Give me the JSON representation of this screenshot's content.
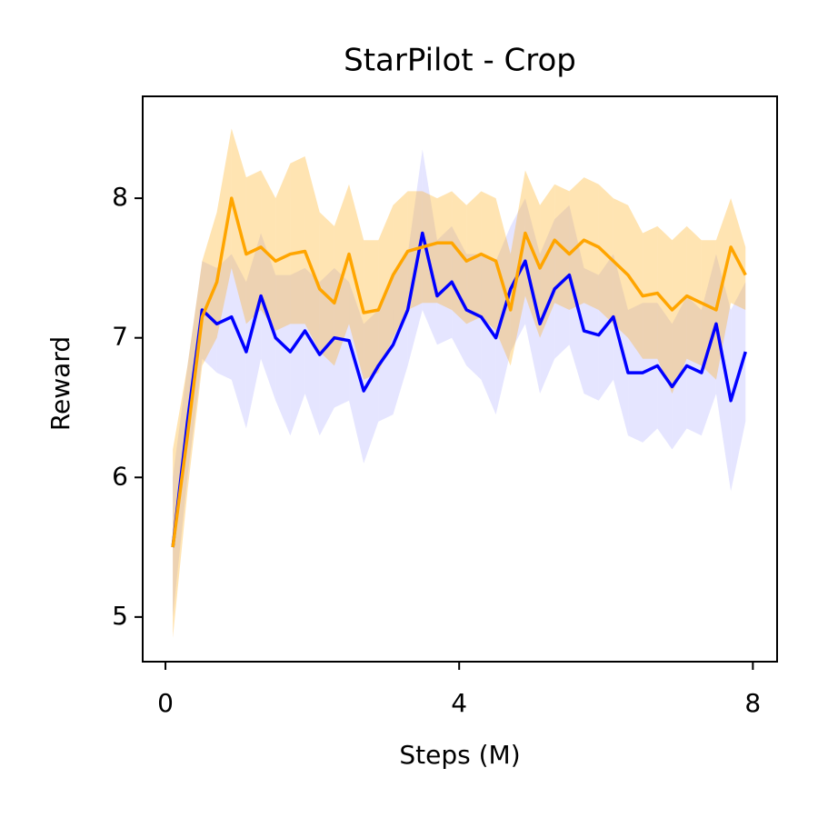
{
  "chart_data": {
    "type": "line",
    "title": "StarPilot - Crop",
    "xlabel": "Steps (M)",
    "ylabel": "Reward",
    "x": [
      0.1,
      0.3,
      0.5,
      0.7,
      0.9,
      1.1,
      1.3,
      1.5,
      1.7,
      1.9,
      2.1,
      2.3,
      2.5,
      2.7,
      2.9,
      3.1,
      3.3,
      3.5,
      3.7,
      3.9,
      4.1,
      4.3,
      4.5,
      4.7,
      4.9,
      5.1,
      5.3,
      5.5,
      5.7,
      5.9,
      6.1,
      6.3,
      6.5,
      6.7,
      6.9,
      7.1,
      7.3,
      7.5,
      7.7,
      7.9
    ],
    "series": [
      {
        "color": "#0000ff",
        "values": [
          5.5,
          6.4,
          7.2,
          7.1,
          7.15,
          6.9,
          7.3,
          7.0,
          6.9,
          7.05,
          6.88,
          7.0,
          6.98,
          6.62,
          6.8,
          6.95,
          7.2,
          7.75,
          7.3,
          7.4,
          7.2,
          7.15,
          7.0,
          7.35,
          7.55,
          7.1,
          7.35,
          7.45,
          7.05,
          7.02,
          7.15,
          6.75,
          6.75,
          6.8,
          6.65,
          6.8,
          6.75,
          7.1,
          6.55,
          6.9
        ],
        "lower": [
          5.0,
          6.0,
          6.85,
          6.75,
          6.7,
          6.35,
          6.85,
          6.55,
          6.3,
          6.6,
          6.3,
          6.5,
          6.55,
          6.1,
          6.4,
          6.45,
          6.8,
          7.2,
          6.95,
          7.0,
          6.8,
          6.7,
          6.45,
          6.9,
          7.1,
          6.6,
          6.85,
          6.95,
          6.6,
          6.55,
          6.7,
          6.3,
          6.25,
          6.35,
          6.2,
          6.35,
          6.3,
          6.6,
          5.9,
          6.4
        ],
        "upper": [
          6.0,
          6.8,
          7.55,
          7.5,
          7.6,
          7.4,
          7.75,
          7.45,
          7.45,
          7.5,
          7.4,
          7.5,
          7.4,
          7.1,
          7.2,
          7.45,
          7.6,
          8.35,
          7.7,
          7.8,
          7.6,
          7.6,
          7.55,
          7.8,
          8.0,
          7.6,
          7.85,
          7.95,
          7.5,
          7.45,
          7.6,
          7.2,
          7.25,
          7.25,
          7.1,
          7.3,
          7.2,
          7.6,
          7.2,
          7.4
        ]
      },
      {
        "color": "#ffa500",
        "values": [
          5.5,
          6.3,
          7.15,
          7.4,
          8.0,
          7.6,
          7.65,
          7.55,
          7.6,
          7.62,
          7.35,
          7.25,
          7.6,
          7.18,
          7.2,
          7.45,
          7.62,
          7.65,
          7.68,
          7.68,
          7.55,
          7.6,
          7.55,
          7.2,
          7.75,
          7.5,
          7.7,
          7.6,
          7.7,
          7.65,
          7.55,
          7.45,
          7.3,
          7.32,
          7.2,
          7.3,
          7.25,
          7.2,
          7.65,
          7.45
        ],
        "lower": [
          4.85,
          5.9,
          6.8,
          7.0,
          7.5,
          7.1,
          7.2,
          7.05,
          7.1,
          7.1,
          6.9,
          6.8,
          7.1,
          6.7,
          6.75,
          7.0,
          7.2,
          7.25,
          7.25,
          7.2,
          7.1,
          7.15,
          7.05,
          6.8,
          7.3,
          7.0,
          7.25,
          7.2,
          7.25,
          7.2,
          7.1,
          7.0,
          6.85,
          6.85,
          6.6,
          6.85,
          6.8,
          6.7,
          7.25,
          7.2
        ],
        "upper": [
          6.2,
          6.8,
          7.55,
          7.9,
          8.5,
          8.15,
          8.2,
          8.0,
          8.25,
          8.3,
          7.9,
          7.8,
          8.1,
          7.7,
          7.7,
          7.95,
          8.05,
          8.05,
          8.0,
          8.05,
          7.95,
          8.05,
          8.0,
          7.6,
          8.2,
          7.95,
          8.1,
          8.05,
          8.15,
          8.1,
          8.0,
          7.95,
          7.75,
          7.8,
          7.7,
          7.8,
          7.7,
          7.7,
          8.0,
          7.65
        ]
      }
    ],
    "xlim": [
      -0.31,
      8.33
    ],
    "xticks": [
      0,
      4,
      8
    ],
    "ylim": [
      4.68,
      8.73
    ],
    "yticks": [
      5,
      6,
      7,
      8
    ]
  }
}
